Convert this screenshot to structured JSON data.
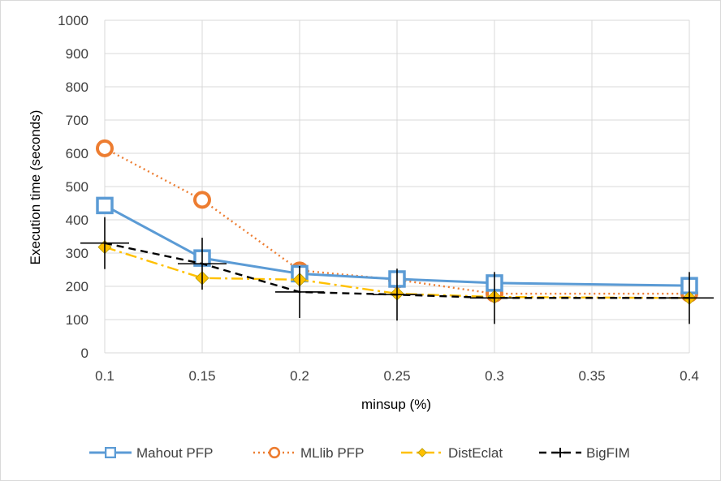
{
  "chart_data": {
    "type": "line",
    "xlabel": "minsup (%)",
    "ylabel": "Execution time (seconds)",
    "x_ticks": [
      "0.1",
      "0.15",
      "0.2",
      "0.25",
      "0.3",
      "0.35",
      "0.4"
    ],
    "y_ticks": [
      "0",
      "100",
      "200",
      "300",
      "400",
      "500",
      "600",
      "700",
      "800",
      "900",
      "1000"
    ],
    "xlim": [
      0.1,
      0.4
    ],
    "ylim": [
      0,
      1000
    ],
    "grid": true,
    "legend_position": "bottom",
    "series": [
      {
        "name": "Mahout PFP",
        "color": "#5b9bd5",
        "marker": "square",
        "line_style": "solid",
        "x": [
          0.1,
          0.15,
          0.2,
          0.25,
          0.3,
          0.4
        ],
        "y": [
          443,
          285,
          238,
          222,
          210,
          202
        ]
      },
      {
        "name": "MLlib PFP",
        "color": "#ed7d31",
        "marker": "circle",
        "line_style": "dotted",
        "x": [
          0.1,
          0.15,
          0.2,
          0.25,
          0.3,
          0.4
        ],
        "y": [
          615,
          460,
          248,
          220,
          178,
          178
        ]
      },
      {
        "name": "DistEclat",
        "color": "#ffc000",
        "marker": "diamond",
        "line_style": "dash-dot",
        "x": [
          0.1,
          0.15,
          0.2,
          0.25,
          0.3,
          0.4
        ],
        "y": [
          318,
          225,
          220,
          178,
          168,
          165
        ]
      },
      {
        "name": "BigFIM",
        "color": "#000000",
        "marker": "plus",
        "line_style": "dashed",
        "x": [
          0.1,
          0.15,
          0.2,
          0.25,
          0.3,
          0.4
        ],
        "y": [
          330,
          268,
          183,
          175,
          165,
          165
        ]
      }
    ]
  }
}
